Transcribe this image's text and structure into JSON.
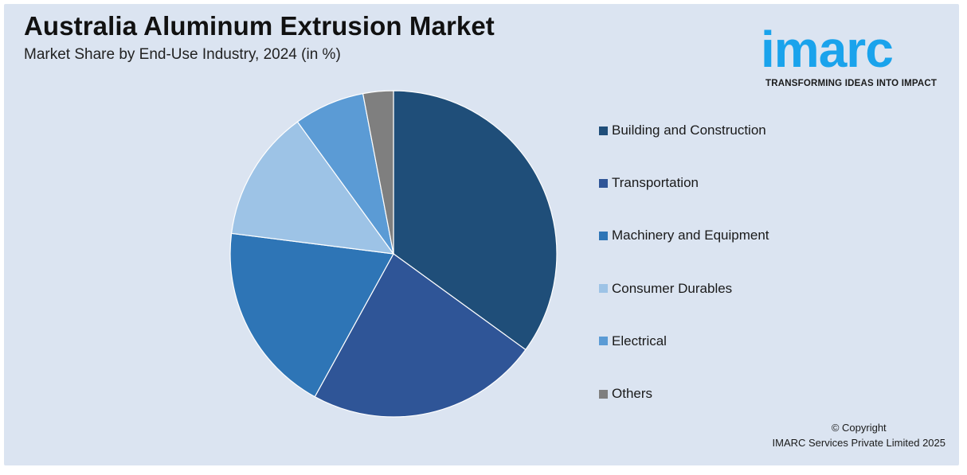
{
  "header": {
    "title": "Australia Aluminum Extrusion Market",
    "subtitle": "Market Share by End-Use Industry, 2024 (in %)"
  },
  "logo": {
    "wordmark": "imarc",
    "tagline": "TRANSFORMING IDEAS INTO IMPACT",
    "color": "#1aa3ec"
  },
  "chart_data": {
    "type": "pie",
    "title": "Australia Aluminum Extrusion Market",
    "subtitle": "Market Share by End-Use Industry, 2024 (in %)",
    "categories": [
      "Building and Construction",
      "Transportation",
      "Machinery and Equipment",
      "Consumer Durables",
      "Electrical",
      "Others"
    ],
    "values": [
      35,
      23,
      19,
      13,
      7,
      3
    ],
    "colors": [
      "#1f4e79",
      "#2f5597",
      "#2e75b6",
      "#9dc3e6",
      "#5b9bd5",
      "#7f7f7f"
    ],
    "start_angle": "12 o'clock",
    "direction": "clockwise",
    "legend_position": "right"
  },
  "footer": {
    "copyright_line1": "© Copyright",
    "copyright_line2": "IMARC Services Private Limited 2025"
  }
}
